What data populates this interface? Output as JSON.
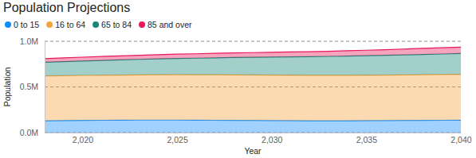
{
  "chart_data": {
    "type": "area",
    "title": "Population Projections",
    "x_label": "Year",
    "y_label": "Population",
    "stacked": true,
    "grid": true,
    "legend": "top-left",
    "x": [
      2018,
      2019,
      2020,
      2021,
      2022,
      2023,
      2024,
      2025,
      2026,
      2027,
      2028,
      2029,
      2030,
      2031,
      2032,
      2033,
      2034,
      2035,
      2036,
      2037,
      2038,
      2039,
      2040
    ],
    "xlim": [
      2018,
      2040
    ],
    "xticks": [
      {
        "value": 2020,
        "label": "2,020"
      },
      {
        "value": 2025,
        "label": "2,025"
      },
      {
        "value": 2030,
        "label": "2,030"
      },
      {
        "value": 2035,
        "label": "2,035"
      },
      {
        "value": 2040,
        "label": "2,040"
      }
    ],
    "ylim": [
      0,
      1000000
    ],
    "yticks": [
      {
        "value": 0,
        "label": "0.0M"
      },
      {
        "value": 500000,
        "label": "0.5M"
      },
      {
        "value": 1000000,
        "label": "1.0M"
      }
    ],
    "series": [
      {
        "name": "0 to 15",
        "color": "#118DFF",
        "values": [
          130000,
          132000,
          134000,
          135000,
          136000,
          137000,
          137000,
          137000,
          136000,
          135000,
          134000,
          133000,
          132000,
          131000,
          130000,
          130000,
          130000,
          131000,
          132000,
          133000,
          134000,
          135000,
          136000
        ]
      },
      {
        "name": "16 to 64",
        "color": "#F5A33B",
        "values": [
          490000,
          491000,
          492000,
          493000,
          494000,
          495000,
          496000,
          497000,
          497000,
          498000,
          498000,
          498000,
          498000,
          498000,
          498000,
          498000,
          498000,
          498000,
          498000,
          499000,
          500000,
          501000,
          502000
        ]
      },
      {
        "name": "65 to 84",
        "color": "#17867A",
        "values": [
          150000,
          154000,
          158000,
          162000,
          166000,
          170000,
          174000,
          178000,
          182000,
          186000,
          190000,
          194000,
          198000,
          201000,
          204000,
          207000,
          210000,
          213000,
          216000,
          219000,
          222000,
          225000,
          228000
        ]
      },
      {
        "name": "85 and over",
        "color": "#E8185B",
        "values": [
          40000,
          41000,
          42000,
          43000,
          44000,
          45000,
          46000,
          47000,
          48000,
          49000,
          50000,
          51000,
          52000,
          53000,
          54000,
          56000,
          58000,
          60000,
          62000,
          64000,
          66000,
          68000,
          70000
        ]
      }
    ]
  }
}
